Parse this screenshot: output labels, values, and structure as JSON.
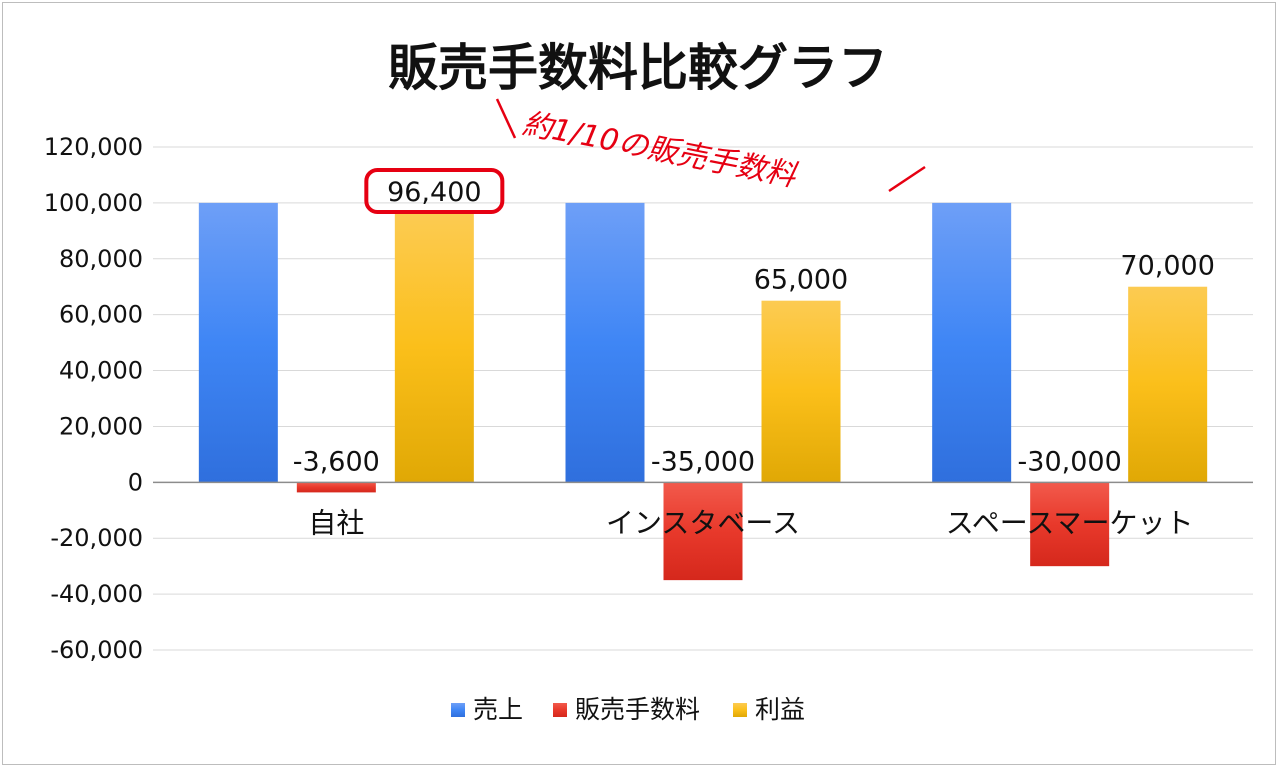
{
  "chart_data": {
    "type": "bar",
    "title": "販売手数料比較グラフ",
    "categories": [
      "自社",
      "インスタベース",
      "スペースマーケット"
    ],
    "series": [
      {
        "name": "売上",
        "values": [
          100000,
          100000,
          100000
        ],
        "color": "#4285f4",
        "show_labels": false
      },
      {
        "name": "販売手数料",
        "values": [
          -3600,
          -35000,
          -30000
        ],
        "color": "#ea4335",
        "show_labels": true
      },
      {
        "name": "利益",
        "values": [
          96400,
          65000,
          70000
        ],
        "color": "#fbbc04",
        "show_labels": true
      }
    ],
    "ylim": [
      -60000,
      120000
    ],
    "yticks": [
      120000,
      100000,
      80000,
      60000,
      40000,
      20000,
      0,
      -20000,
      -40000,
      -60000
    ],
    "ytick_labels": [
      "120,000",
      "100,000",
      "80,000",
      "60,000",
      "40,000",
      "20,000",
      "0",
      "-20,000",
      "-40,000",
      "-60,000"
    ],
    "data_labels": [
      [
        "",
        "",
        ""
      ],
      [
        "-3,600",
        "-35,000",
        "-30,000"
      ],
      [
        "96,400",
        "65,000",
        "70,000"
      ]
    ],
    "gridlines": true,
    "legend_position": "bottom",
    "annotation": {
      "text": "約1/10の販売手数料",
      "color": "#e60012",
      "highlight": {
        "series": 2,
        "category": 0
      }
    }
  }
}
